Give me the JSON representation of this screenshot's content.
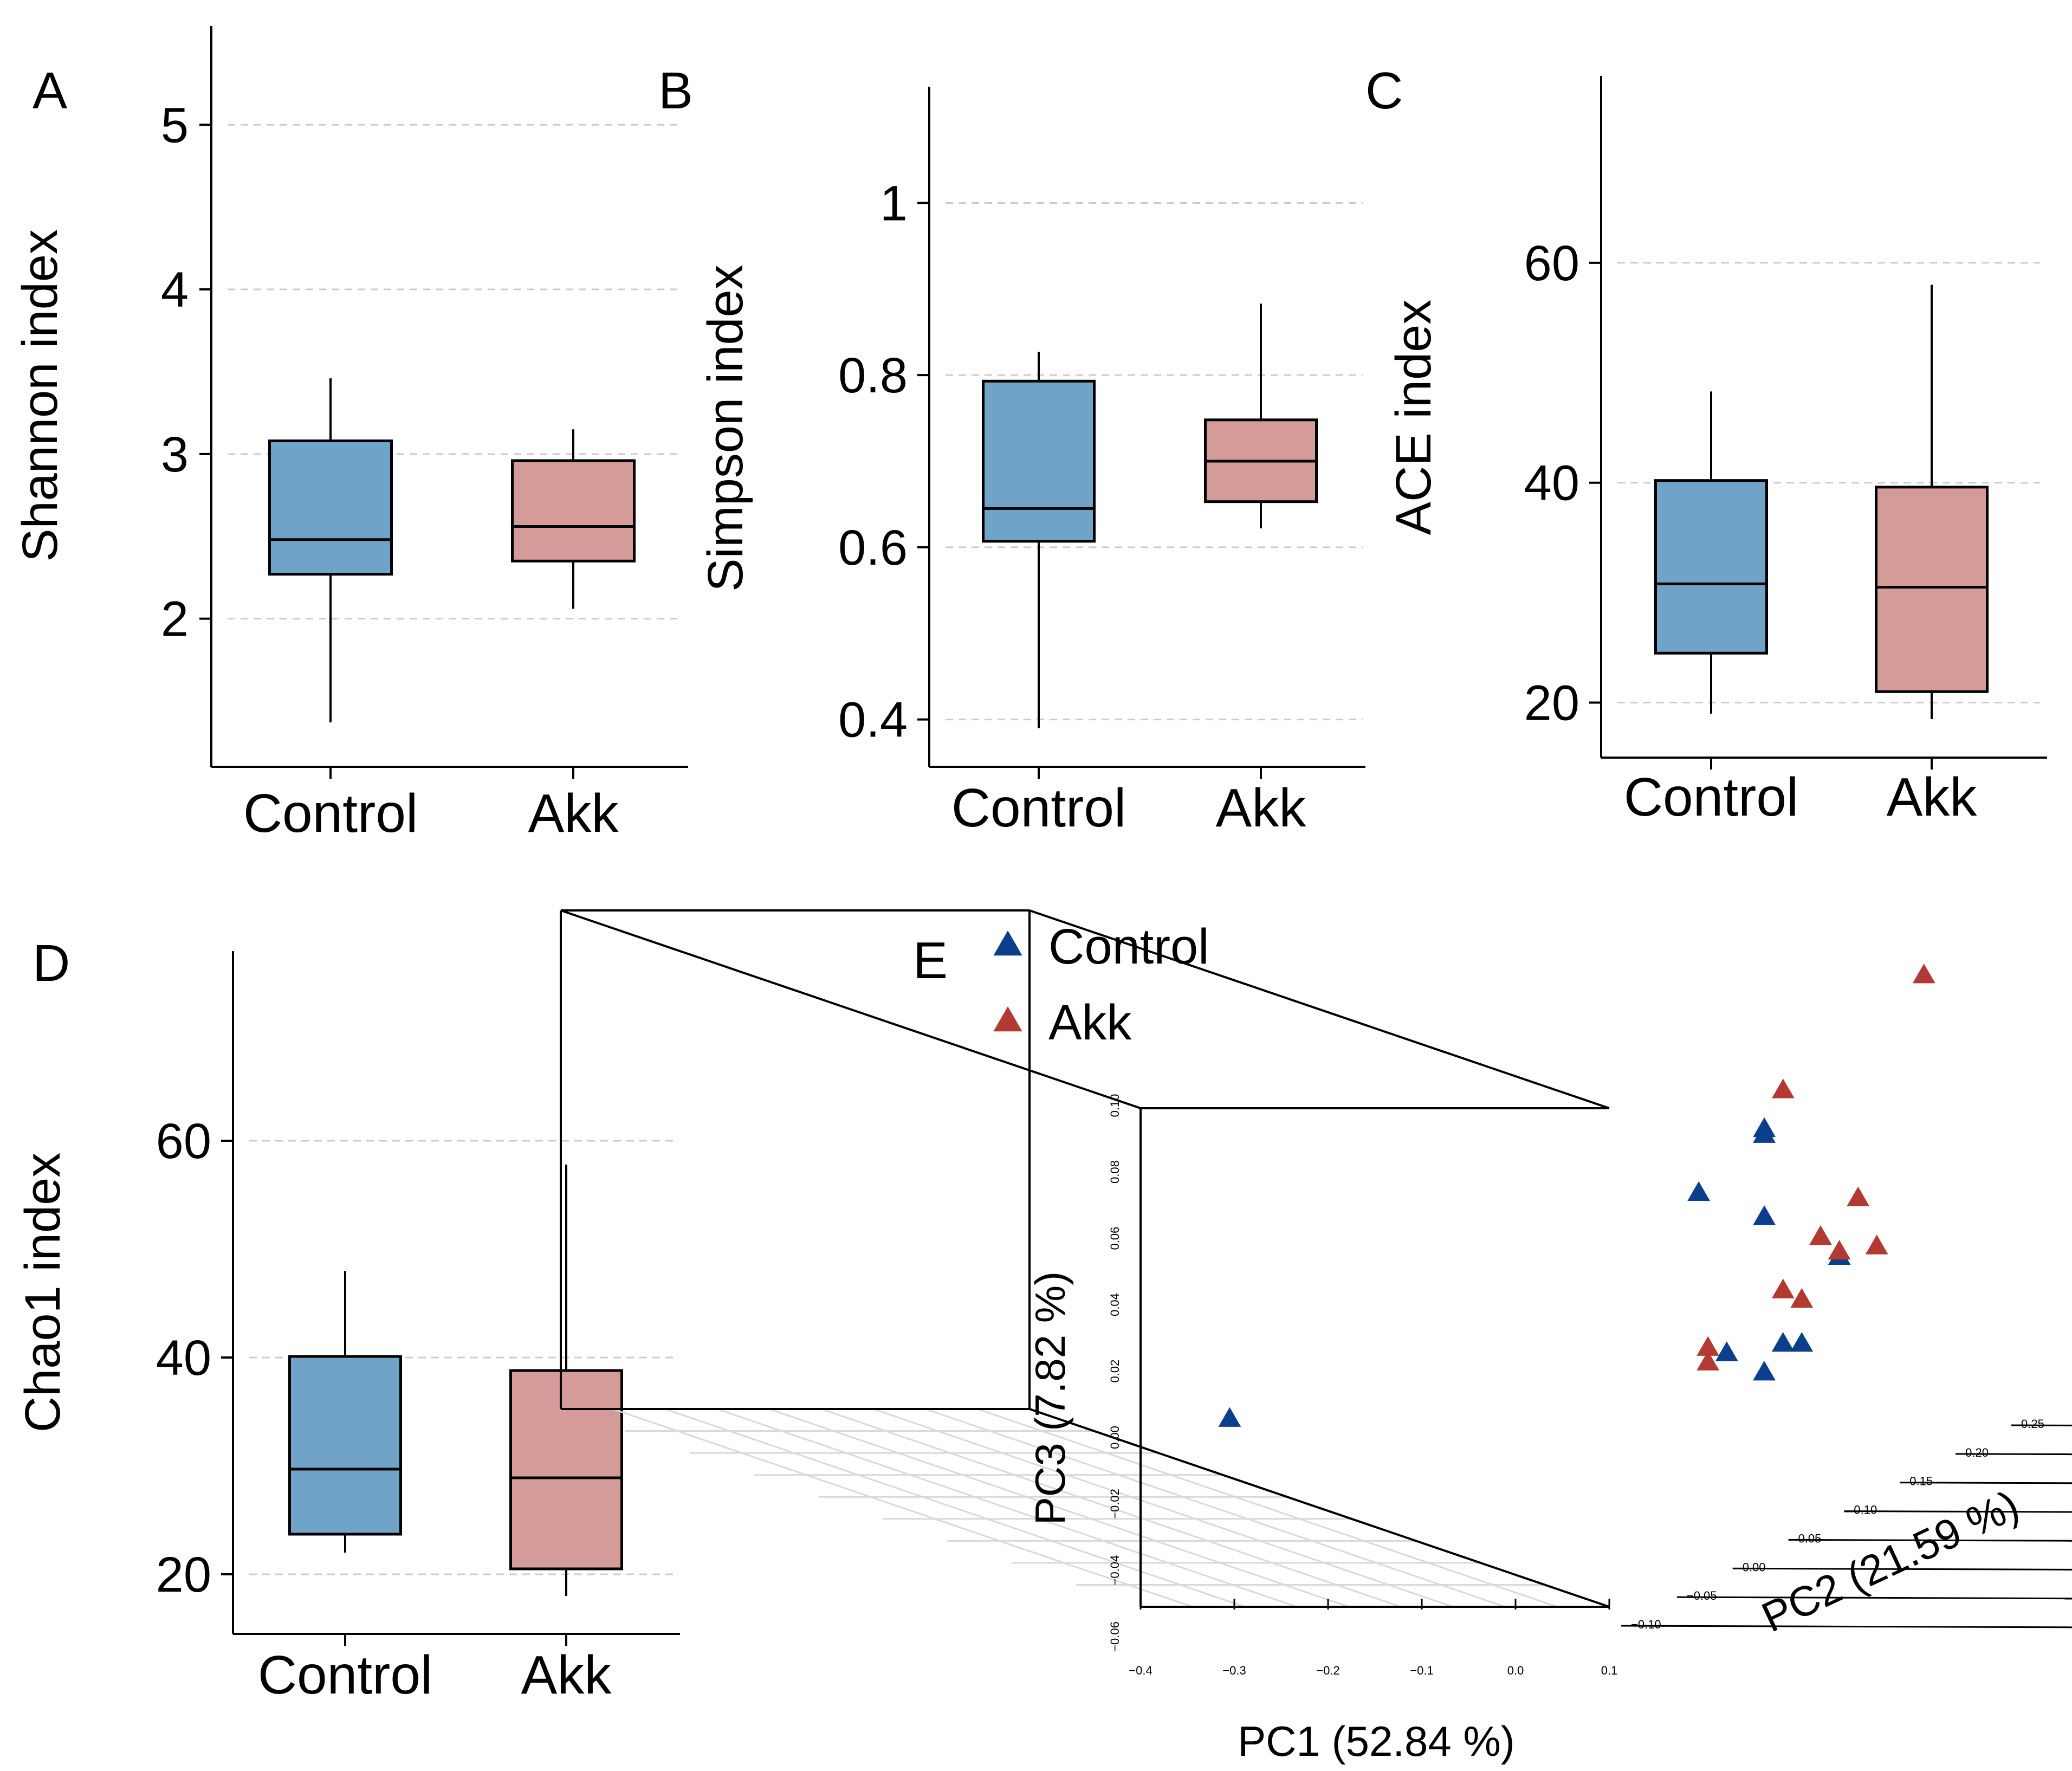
{
  "colors": {
    "control": "#6fa3c8",
    "akk": "#d59b98",
    "control_point": "#0b3f8c",
    "akk_point": "#b23a32",
    "grid": "#d9d9d9",
    "box_grid": "#cccccc"
  },
  "chart_data": [
    {
      "panel": "A",
      "type": "box",
      "ylabel": "Shannon index",
      "ylim": [
        1.1,
        5.6
      ],
      "yticks": [
        "2",
        "3",
        "4",
        "5"
      ],
      "ytick_values": [
        2,
        3,
        4,
        5
      ],
      "categories": [
        "Control",
        "Akk"
      ],
      "boxes": [
        {
          "name": "Control",
          "min": 1.37,
          "q1": 2.27,
          "median": 2.48,
          "q3": 3.08,
          "max": 3.46
        },
        {
          "name": "Akk",
          "min": 2.06,
          "q1": 2.35,
          "median": 2.56,
          "q3": 2.96,
          "max": 3.15
        }
      ]
    },
    {
      "panel": "B",
      "type": "box",
      "ylabel": "Simpson index",
      "ylim": [
        0.345,
        1.135
      ],
      "yticks": [
        "0.4",
        "0.6",
        "0.8",
        "1"
      ],
      "ytick_values": [
        0.4,
        0.6,
        0.8,
        1.0
      ],
      "categories": [
        "Control",
        "Akk"
      ],
      "boxes": [
        {
          "name": "Control",
          "min": 0.39,
          "q1": 0.607,
          "median": 0.645,
          "q3": 0.793,
          "max": 0.827
        },
        {
          "name": "Akk",
          "min": 0.622,
          "q1": 0.653,
          "median": 0.7,
          "q3": 0.748,
          "max": 0.883
        }
      ]
    },
    {
      "panel": "C",
      "type": "box",
      "ylabel": "ACE index",
      "ylim": [
        15,
        77
      ],
      "yticks": [
        "20",
        "40",
        "60"
      ],
      "ytick_values": [
        20,
        40,
        60
      ],
      "categories": [
        "Control",
        "Akk"
      ],
      "boxes": [
        {
          "name": "Control",
          "min": 19,
          "q1": 24.5,
          "median": 30.8,
          "q3": 40.2,
          "max": 48.3
        },
        {
          "name": "Akk",
          "min": 18.5,
          "q1": 21,
          "median": 30.5,
          "q3": 39.6,
          "max": 58
        }
      ]
    },
    {
      "panel": "D",
      "type": "box",
      "ylabel": "Chao1 index",
      "ylim": [
        14.5,
        77.5
      ],
      "yticks": [
        "20",
        "40",
        "60"
      ],
      "ytick_values": [
        20,
        40,
        60
      ],
      "categories": [
        "Control",
        "Akk"
      ],
      "boxes": [
        {
          "name": "Control",
          "min": 22,
          "q1": 23.7,
          "median": 29.7,
          "q3": 40.1,
          "max": 48
        },
        {
          "name": "Akk",
          "min": 18,
          "q1": 20.5,
          "median": 28.9,
          "q3": 38.8,
          "max": 57.8
        }
      ]
    },
    {
      "panel": "E",
      "type": "scatter3d",
      "xlabel": "PC1 (52.84 %)",
      "ylabel": "PC2 (21.59 %)",
      "zlabel": "PC3 (7.82 %)",
      "x_ticks": [
        "−0.4",
        "−0.3",
        "−0.2",
        "−0.1",
        "0.0",
        "0.1"
      ],
      "y_ticks": [
        "−0.10",
        "−0.05",
        "0.00",
        "0.05",
        "0.10",
        "0.15",
        "0.20",
        "0.25"
      ],
      "z_ticks": [
        "−0.06",
        "−0.04",
        "−0.02",
        "0.00",
        "0.02",
        "0.04",
        "0.06",
        "0.08",
        "0.10"
      ],
      "legend": [
        {
          "name": "Control",
          "color": "#0b3f8c"
        },
        {
          "name": "Akk",
          "color": "#b23a32"
        }
      ],
      "series": [
        {
          "name": "Control",
          "points": [
            [
              -0.33,
              -0.1,
              -0.005
            ],
            [
              0.06,
              0.08,
              0.065
            ],
            [
              0.06,
              0.08,
              0.063
            ],
            [
              -0.03,
              0.1,
              0.04
            ],
            [
              0.06,
              0.08,
              0.035
            ],
            [
              0.1,
              0.12,
              0.015
            ],
            [
              0.06,
              0.04,
              -0.005
            ],
            [
              0.1,
              0.06,
              -0.005
            ],
            [
              0.12,
              0.06,
              -0.005
            ],
            [
              0.11,
              0.03,
              -0.01
            ]
          ]
        },
        {
          "name": "Akk",
          "points": [
            [
              0.09,
              0.22,
              0.095
            ],
            [
              0.06,
              0.1,
              0.075
            ],
            [
              0.12,
              0.12,
              0.035
            ],
            [
              0.1,
              0.1,
              0.025
            ],
            [
              0.12,
              0.1,
              0.02
            ],
            [
              0.18,
              0.08,
              0.025
            ],
            [
              0.08,
              0.08,
              0.01
            ],
            [
              0.12,
              0.06,
              0.01
            ],
            [
              0.06,
              0.02,
              0.0
            ],
            [
              0.06,
              0.02,
              -0.005
            ]
          ]
        }
      ]
    }
  ]
}
